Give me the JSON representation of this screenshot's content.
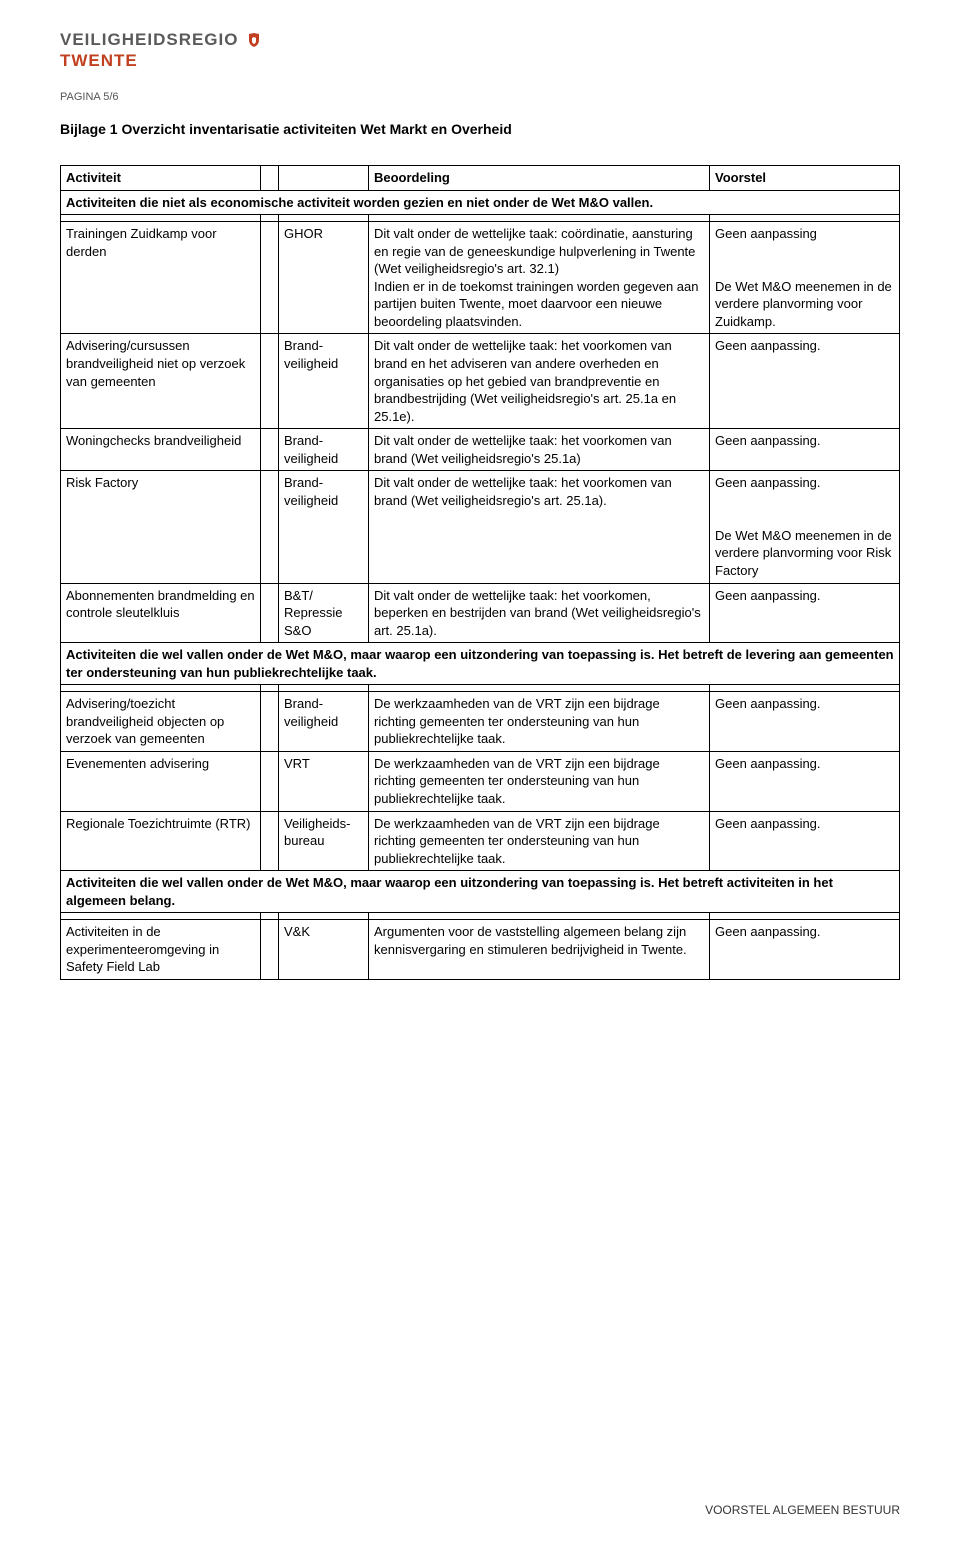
{
  "logo": {
    "line1a": "VEILIGHEIDS",
    "line1b": "REGIO",
    "line2": "TWENTE"
  },
  "pagina": "PAGINA 5/6",
  "bijlage_title": "Bijlage 1  Overzicht inventarisatie activiteiten Wet Markt en Overheid",
  "headers": {
    "activity": "Activiteit",
    "assessment": "Beoordeling",
    "proposal": "Voorstel"
  },
  "section1": "Activiteiten die niet als economische activiteit worden gezien en niet onder de Wet M&O vallen.",
  "rows1": [
    {
      "activity": "Trainingen Zuidkamp voor derden",
      "dept": "GHOR",
      "assessment": "Dit valt onder de wettelijke taak: coördinatie, aansturing en regie van de geneeskundige hulpverlening in Twente (Wet veiligheidsregio's art. 32.1)\nIndien er in de toekomst trainingen worden gegeven aan partijen buiten Twente, moet daarvoor een nieuwe beoordeling plaatsvinden.",
      "proposal": "Geen aanpassing\n\nDe Wet M&O meenemen in de verdere planvorming voor Zuidkamp."
    },
    {
      "activity": "Advisering/cursussen brandveiligheid niet op verzoek van gemeenten",
      "dept": "Brand-veiligheid",
      "assessment": "Dit valt onder de wettelijke taak: het voorkomen van brand en het adviseren van andere overheden en organisaties op het gebied van brandpreventie en brandbestrijding (Wet veiligheidsregio's art. 25.1a en 25.1e).",
      "proposal": "Geen aanpassing."
    },
    {
      "activity": "Woningchecks brandveiligheid",
      "dept": "Brand-veiligheid",
      "assessment": "Dit valt onder de wettelijke taak: het voorkomen van brand (Wet veiligheidsregio's 25.1a)",
      "proposal": "Geen aanpassing."
    },
    {
      "activity": "Risk Factory",
      "dept": "Brand-veiligheid",
      "assessment": "Dit valt onder de wettelijke taak: het voorkomen van brand (Wet veiligheidsregio's art. 25.1a).",
      "proposal": "Geen aanpassing.\n\nDe Wet M&O meenemen in de verdere planvorming voor Risk Factory"
    },
    {
      "activity": "Abonnementen brandmelding en controle sleutelkluis",
      "dept": "B&T/\nRepressie\nS&O",
      "assessment": "Dit valt onder de wettelijke taak: het voorkomen, beperken en bestrijden van brand (Wet veiligheidsregio's art. 25.1a).",
      "proposal": "Geen aanpassing."
    }
  ],
  "section2": "Activiteiten die wel vallen onder de Wet M&O, maar waarop een uitzondering van toepassing is. Het betreft de levering aan gemeenten ter ondersteuning van hun publiekrechtelijke taak.",
  "rows2": [
    {
      "activity": "Advisering/toezicht brandveiligheid objecten op verzoek van gemeenten",
      "dept": "Brand-veiligheid",
      "assessment": "De werkzaamheden van de VRT zijn een bijdrage richting gemeenten ter ondersteuning van hun publiekrechtelijke taak.",
      "proposal": "Geen aanpassing."
    },
    {
      "activity": "Evenementen advisering",
      "dept": "VRT",
      "assessment": "De werkzaamheden van de VRT zijn een bijdrage richting gemeenten ter ondersteuning van hun publiekrechtelijke taak.",
      "proposal": "Geen aanpassing."
    },
    {
      "activity": "Regionale Toezichtruimte (RTR)",
      "dept": "Veiligheids-bureau",
      "assessment": "De werkzaamheden van de VRT zijn een bijdrage richting gemeenten ter ondersteuning van hun publiekrechtelijke taak.",
      "proposal": "Geen aanpassing."
    }
  ],
  "section3": "Activiteiten die wel vallen onder de Wet M&O, maar waarop een uitzondering van toepassing is. Het betreft activiteiten in het algemeen belang.",
  "rows3": [
    {
      "activity": "Activiteiten in de experimenteeromgeving in Safety Field Lab",
      "dept": "V&K",
      "assessment": "Argumenten voor de vaststelling algemeen belang zijn kennisvergaring en stimuleren bedrijvigheid in Twente.",
      "proposal": "Geen aanpassing."
    }
  ],
  "footer": "VOORSTEL ALGEMEEN BESTUUR"
}
